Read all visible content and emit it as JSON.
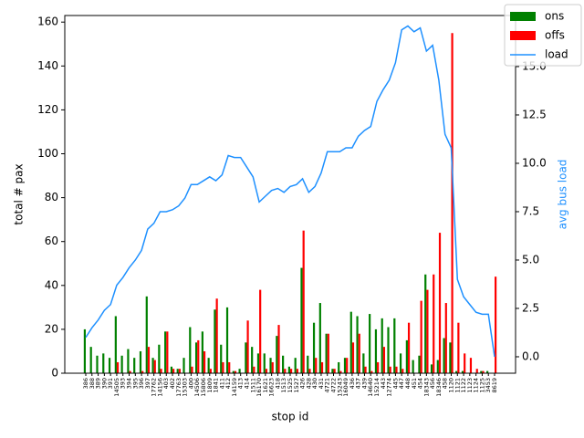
{
  "chart_data": {
    "type": "bar-line",
    "xlabel": "stop id",
    "ylabel": "total # pax",
    "y2label": "avg bus load",
    "categories": [
      "386",
      "388",
      "389",
      "390",
      "391",
      "14505",
      "393",
      "394",
      "395",
      "396",
      "397",
      "17762",
      "14156",
      "403",
      "402",
      "17763",
      "15303",
      "400",
      "14506",
      "15806",
      "1809",
      "1841",
      "411",
      "412",
      "14159",
      "413",
      "414",
      "1511",
      "16170",
      "1621",
      "16623",
      "418",
      "1513",
      "1525",
      "1527",
      "426",
      "428",
      "430",
      "431",
      "4721",
      "4722",
      "15243",
      "16049",
      "436",
      "437",
      "439",
      "14640",
      "15214",
      "443",
      "12774",
      "445",
      "447",
      "448",
      "451",
      "454",
      "18343",
      "456",
      "18346",
      "458",
      "1120",
      "1121",
      "1122",
      "1123",
      "1124",
      "1125",
      "3453",
      "8619"
    ],
    "series": [
      {
        "name": "ons",
        "color": "#008000",
        "kind": "bar",
        "values": [
          20,
          12,
          8,
          9,
          7,
          26,
          8,
          11,
          7,
          10,
          35,
          7,
          13,
          19,
          3,
          2,
          7,
          21,
          14,
          19,
          7,
          29,
          13,
          30,
          1,
          2,
          14,
          12,
          9,
          9,
          7,
          17,
          8,
          3,
          7,
          48,
          8,
          23,
          32,
          18,
          2,
          5,
          7,
          28,
          26,
          9,
          27,
          20,
          25,
          21,
          25,
          9,
          15,
          6,
          8,
          45,
          4,
          6,
          16,
          14,
          1,
          1,
          0,
          0,
          1,
          1,
          0
        ]
      },
      {
        "name": "offs",
        "color": "#ff0000",
        "kind": "bar",
        "values": [
          0,
          0,
          0,
          0,
          0,
          5,
          0,
          1,
          0,
          1,
          12,
          6,
          2,
          19,
          2,
          2,
          0,
          3,
          15,
          10,
          2,
          34,
          5,
          5,
          1,
          0,
          24,
          3,
          38,
          2,
          5,
          22,
          2,
          2,
          2,
          65,
          2,
          7,
          5,
          18,
          2,
          1,
          7,
          14,
          18,
          3,
          1,
          5,
          12,
          3,
          3,
          2,
          23,
          0,
          33,
          38,
          45,
          64,
          32,
          155,
          23,
          9,
          7,
          2,
          1,
          0,
          44
        ]
      },
      {
        "name": "load",
        "color": "#1e90ff",
        "kind": "line",
        "axis": "y2",
        "values": [
          1.0,
          1.5,
          1.9,
          2.4,
          2.7,
          3.7,
          4.1,
          4.6,
          5.0,
          5.5,
          6.6,
          6.9,
          7.5,
          7.5,
          7.6,
          7.8,
          8.2,
          8.9,
          8.9,
          9.1,
          9.3,
          9.1,
          9.4,
          10.4,
          10.3,
          10.3,
          9.8,
          9.3,
          8.0,
          8.3,
          8.6,
          8.7,
          8.5,
          8.8,
          8.9,
          9.2,
          8.5,
          8.8,
          9.5,
          10.6,
          10.6,
          10.6,
          10.8,
          10.8,
          11.4,
          11.7,
          11.9,
          13.2,
          13.8,
          14.3,
          15.2,
          16.9,
          17.1,
          16.8,
          17.0,
          15.8,
          16.1,
          14.3,
          11.5,
          10.8,
          4.0,
          3.1,
          2.7,
          2.3,
          2.2,
          2.2,
          0.0
        ]
      }
    ],
    "ylim": [
      0,
      163
    ],
    "yticks": [
      0,
      20,
      40,
      60,
      80,
      100,
      120,
      140,
      160
    ],
    "y2lim": [
      -0.85,
      17.64
    ],
    "y2ticks": [
      {
        "value": 0,
        "label": "0.0"
      },
      {
        "value": 2.5,
        "label": "2.5"
      },
      {
        "value": 5,
        "label": "5.0"
      },
      {
        "value": 7.5,
        "label": "7.5"
      },
      {
        "value": 10,
        "label": "10.0"
      },
      {
        "value": 12.5,
        "label": "12.5"
      },
      {
        "value": 15,
        "label": "15.0"
      }
    ],
    "legend": "upper right"
  }
}
